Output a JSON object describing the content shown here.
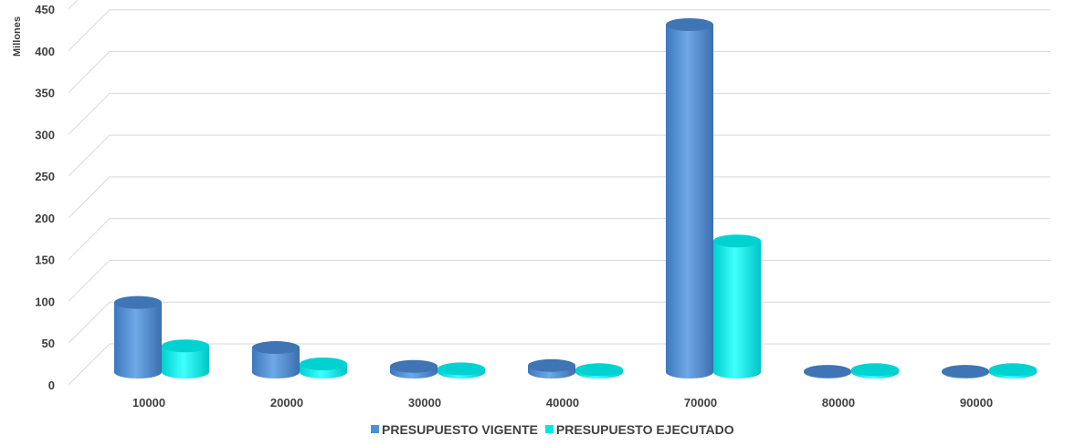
{
  "chart_data": {
    "type": "bar",
    "style": "3d-cylinder",
    "title": "",
    "xlabel": "",
    "ylabel": "Millones",
    "ylim": [
      0,
      450
    ],
    "yticks": [
      0,
      50,
      100,
      150,
      200,
      250,
      300,
      350,
      400,
      450
    ],
    "grid": true,
    "legend_position": "bottom",
    "categories": [
      "10000",
      "20000",
      "30000",
      "40000",
      "70000",
      "80000",
      "90000"
    ],
    "series": [
      {
        "name": "PRESUPUESTO VIGENTE",
        "color": "#4F8FD6",
        "values": [
          85,
          30,
          7,
          8,
          424,
          1,
          1
        ]
      },
      {
        "name": "PRESUPUESTO EJECUTADO",
        "color": "#00E5E5",
        "values": [
          32,
          10,
          4,
          3,
          160,
          3,
          3
        ]
      }
    ]
  }
}
